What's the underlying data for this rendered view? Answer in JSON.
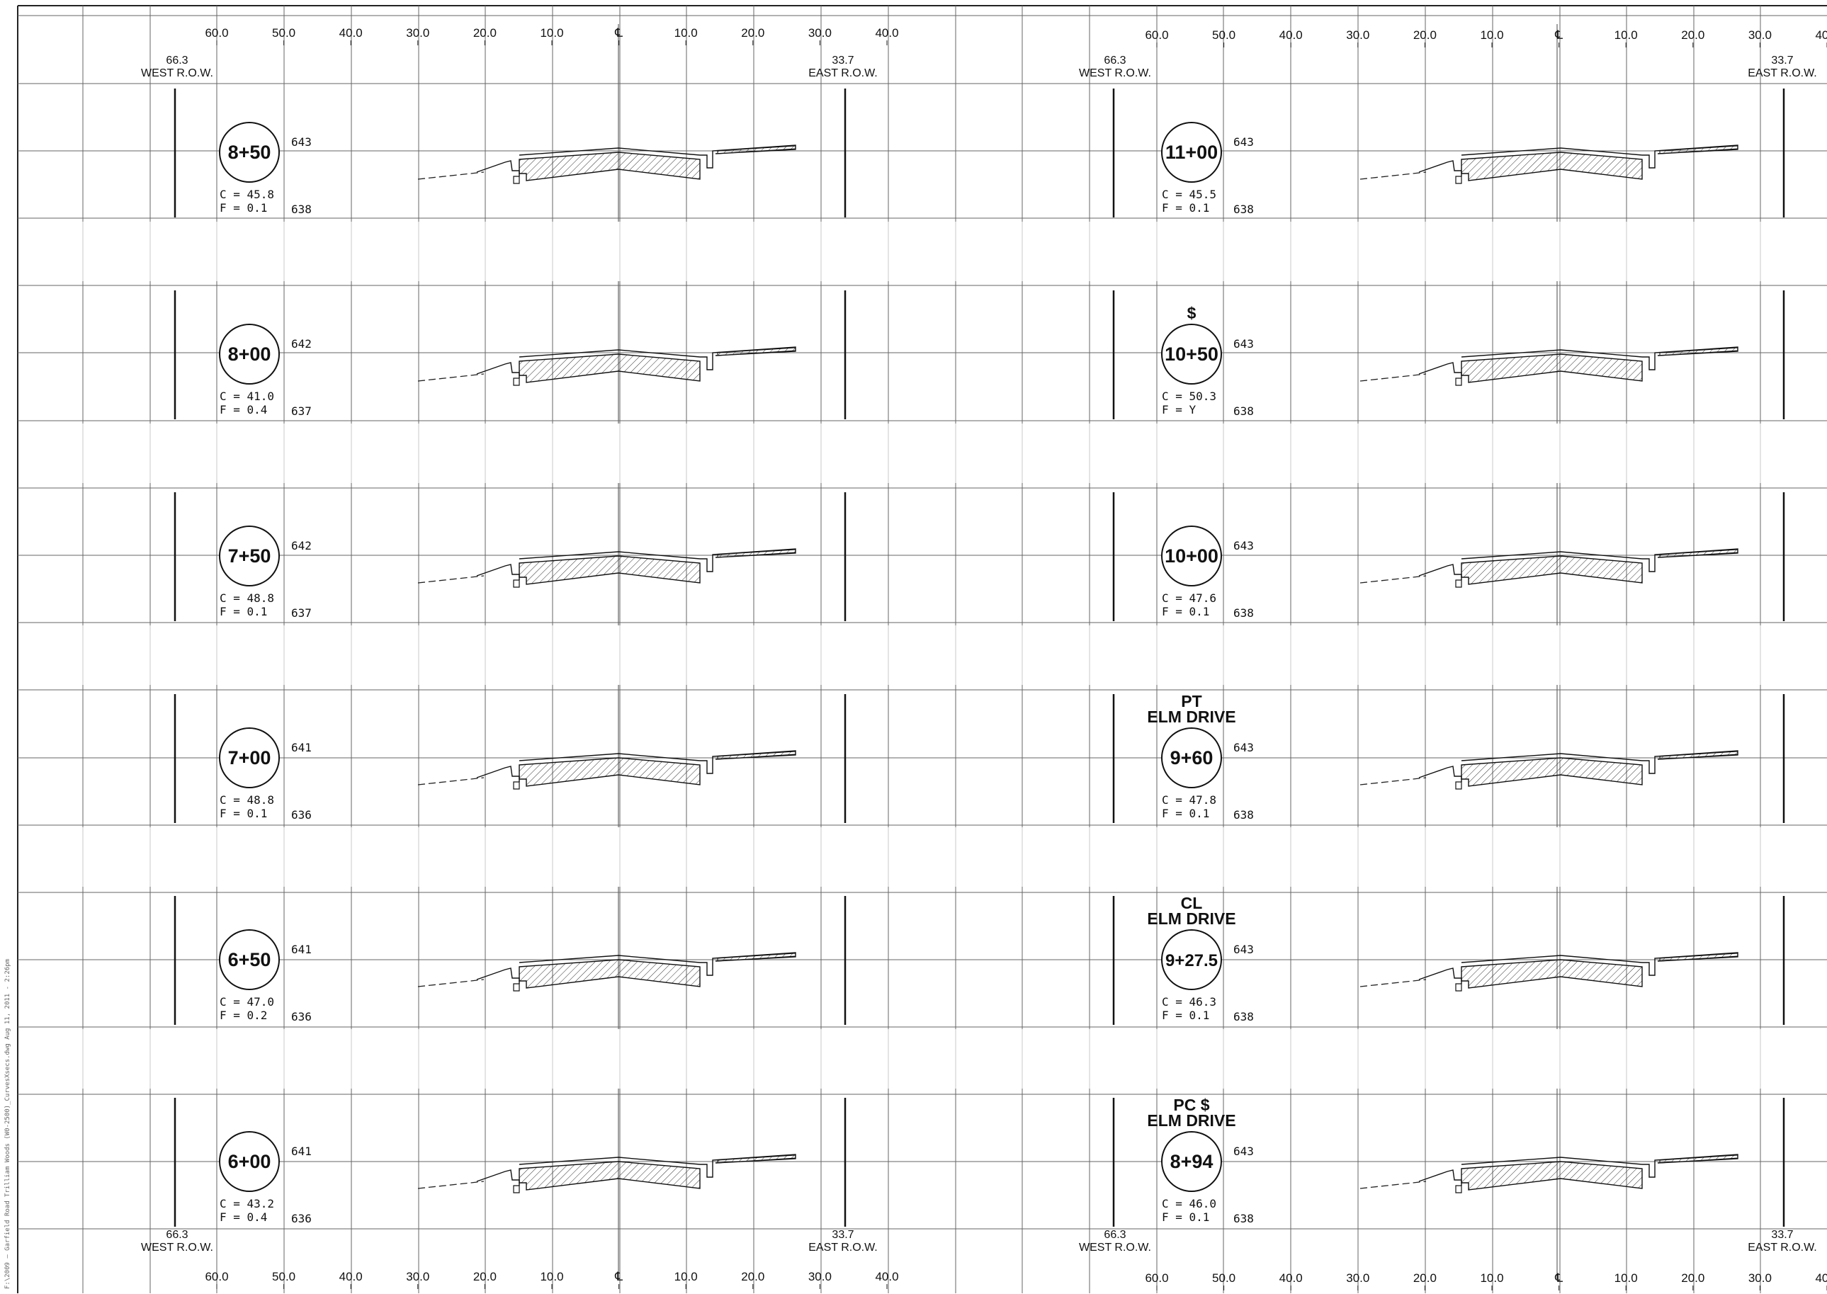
{
  "sheet": {
    "sidebar_note": "F:\\2009 — Garfield Road Trilliam Woods (W0-2500)_CurvesXsecs.dwg    Aug 11, 2011 - 2:26pm",
    "colors": {
      "line": "#222222",
      "grid": "#555555",
      "hatch": "#333333"
    }
  },
  "offset_labels": [
    "60.0",
    "50.0",
    "40.0",
    "30.0",
    "20.0",
    "10.0",
    "℄",
    "10.0",
    "20.0",
    "30.0",
    "40.0"
  ],
  "row_labels": {
    "west_offset": "66.3",
    "west_text": "WEST R.O.W.",
    "east_offset": "33.7",
    "east_text": "EAST R.O.W."
  },
  "left_column": [
    {
      "station": "8+50",
      "elev_top": "643",
      "elev_bottom": "638",
      "cut": "C = 45.8",
      "fill": "F = 0.1"
    },
    {
      "station": "8+00",
      "elev_top": "642",
      "elev_bottom": "637",
      "cut": "C = 41.0",
      "fill": "F = 0.4"
    },
    {
      "station": "7+50",
      "elev_top": "642",
      "elev_bottom": "637",
      "cut": "C = 48.8",
      "fill": "F = 0.1"
    },
    {
      "station": "7+00",
      "elev_top": "641",
      "elev_bottom": "636",
      "cut": "C = 48.8",
      "fill": "F = 0.1"
    },
    {
      "station": "6+50",
      "elev_top": "641",
      "elev_bottom": "636",
      "cut": "C = 47.0",
      "fill": "F = 0.2"
    },
    {
      "station": "6+00",
      "elev_top": "641",
      "elev_bottom": "636",
      "cut": "C = 43.2",
      "fill": "F = 0.4"
    }
  ],
  "right_column": [
    {
      "station": "11+00",
      "elev_top": "643",
      "elev_bottom": "638",
      "cut": "C = 45.5",
      "fill": "F = 0.1",
      "note1": "",
      "note2": ""
    },
    {
      "station": "10+50",
      "elev_top": "643",
      "elev_bottom": "638",
      "cut": "C = 50.3",
      "fill": "F = Y",
      "note1": "$",
      "note2": ""
    },
    {
      "station": "10+00",
      "elev_top": "643",
      "elev_bottom": "638",
      "cut": "C = 47.6",
      "fill": "F = 0.1",
      "note1": "",
      "note2": ""
    },
    {
      "station": "9+60",
      "elev_top": "643",
      "elev_bottom": "638",
      "cut": "C = 47.8",
      "fill": "F = 0.1",
      "note1": "PT",
      "note2": "ELM DRIVE"
    },
    {
      "station": "9+27.5",
      "elev_top": "643",
      "elev_bottom": "638",
      "cut": "C = 46.3",
      "fill": "F = 0.1",
      "note1": "CL",
      "note2": "ELM DRIVE"
    },
    {
      "station": "8+94",
      "elev_top": "643",
      "elev_bottom": "638",
      "cut": "C = 46.0",
      "fill": "F = 0.1",
      "note1": "PC $",
      "note2": "ELM DRIVE"
    }
  ]
}
